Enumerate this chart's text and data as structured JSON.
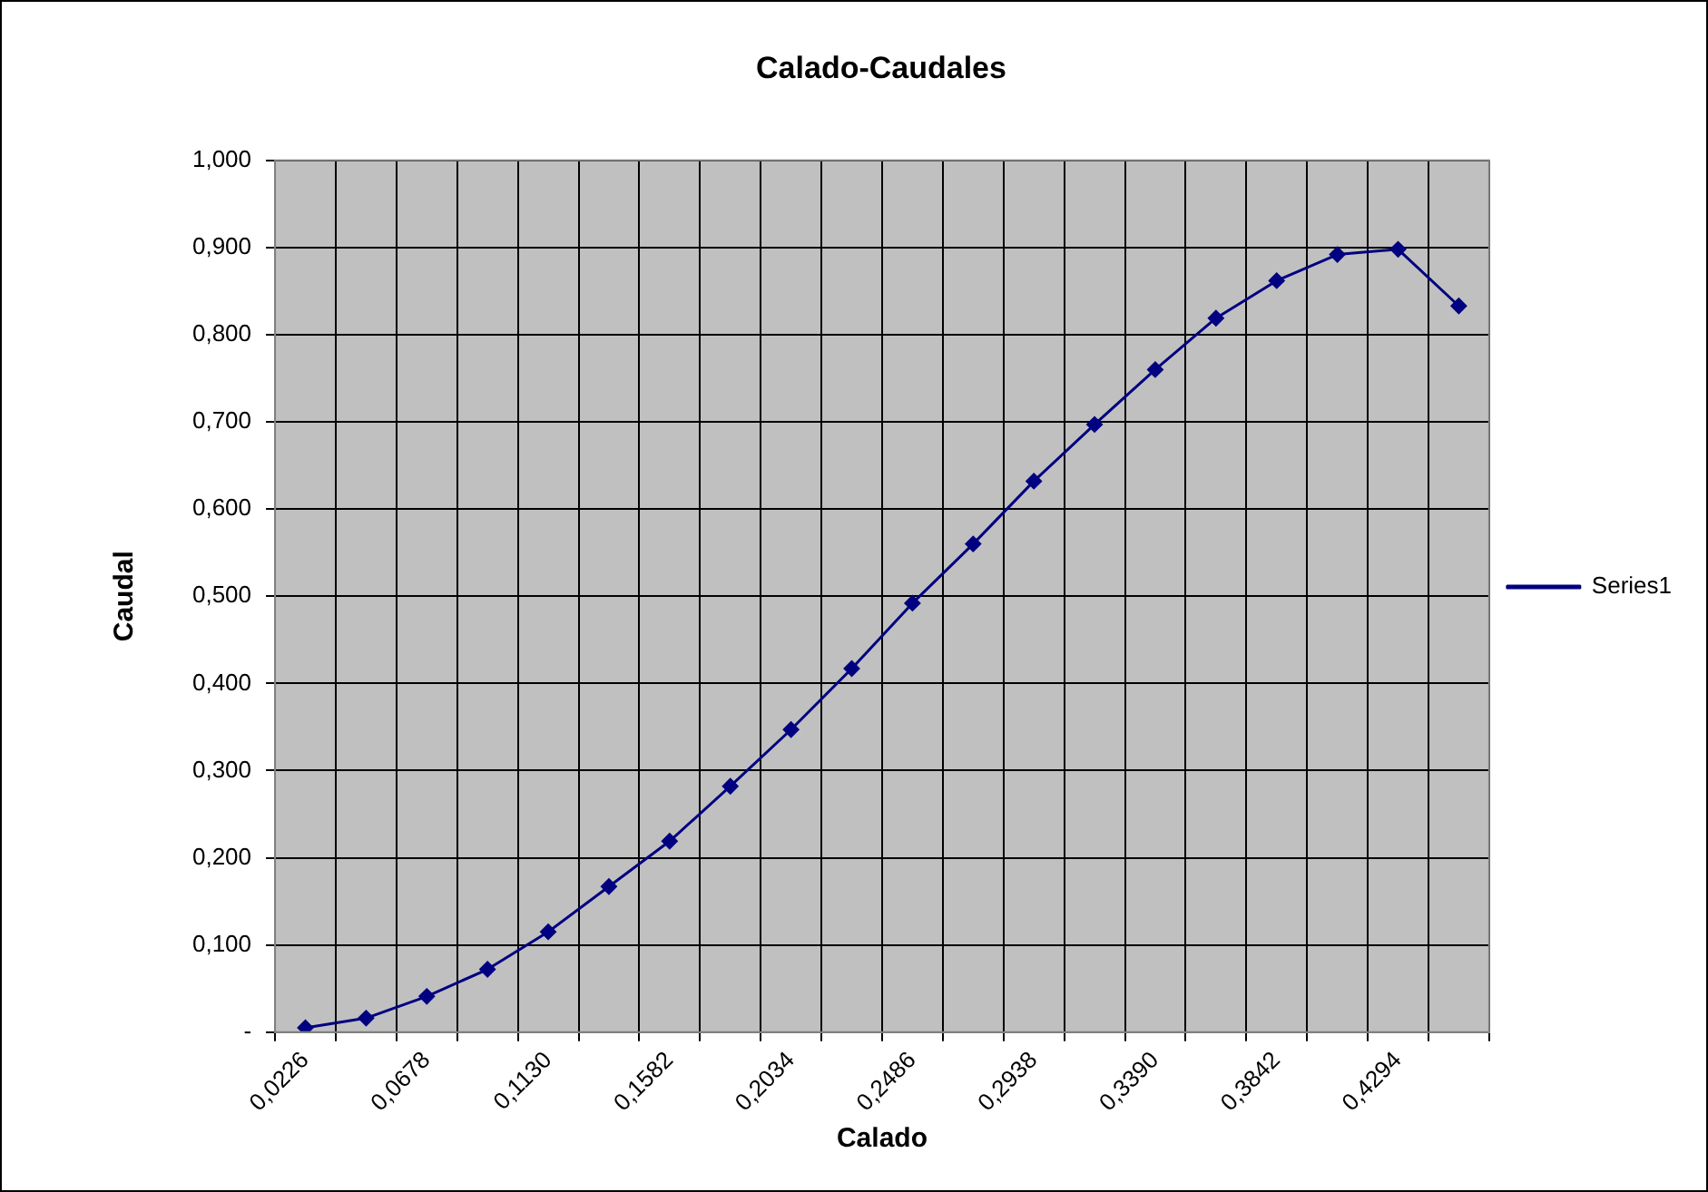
{
  "chart_data": {
    "type": "line",
    "title": "Calado-Caudales",
    "xlabel": "Calado",
    "ylabel": "Caudal",
    "categories": [
      "0,0226",
      null,
      "0,0678",
      null,
      "0,1130",
      null,
      "0,1582",
      null,
      "0,2034",
      null,
      "0,2486",
      null,
      "0,2938",
      null,
      "0,3390",
      null,
      "0,3842",
      null,
      "0,4294",
      null
    ],
    "series": [
      {
        "name": "Series1",
        "color": "#000080",
        "values": [
          0.005,
          0.016,
          0.041,
          0.072,
          0.115,
          0.167,
          0.219,
          0.282,
          0.347,
          0.417,
          0.492,
          0.56,
          0.632,
          0.697,
          0.76,
          0.819,
          0.862,
          0.892,
          0.898,
          0.833
        ]
      }
    ],
    "ylim": [
      0,
      1
    ],
    "yticks": [
      {
        "value": 0,
        "label": "-"
      },
      {
        "value": 0.1,
        "label": "0,100"
      },
      {
        "value": 0.2,
        "label": "0,200"
      },
      {
        "value": 0.3,
        "label": "0,300"
      },
      {
        "value": 0.4,
        "label": "0,400"
      },
      {
        "value": 0.5,
        "label": "0,500"
      },
      {
        "value": 0.6,
        "label": "0,600"
      },
      {
        "value": 0.7,
        "label": "0,700"
      },
      {
        "value": 0.8,
        "label": "0,800"
      },
      {
        "value": 0.9,
        "label": "0,900"
      },
      {
        "value": 1,
        "label": "1,000"
      }
    ],
    "grid": true,
    "legend": "right",
    "marker": "diamond",
    "line_style": "solid"
  }
}
